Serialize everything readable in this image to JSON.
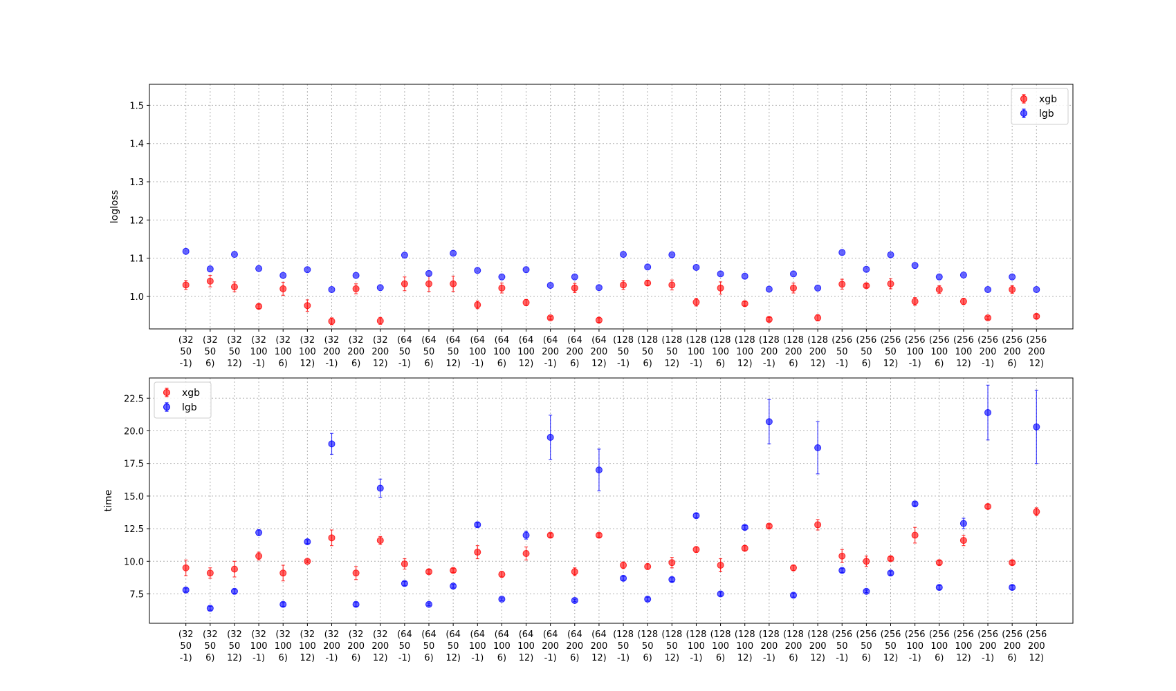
{
  "chart_data": [
    {
      "type": "scatter",
      "title": "",
      "xlabel": "",
      "ylabel": "logloss",
      "ylim": [
        0.915,
        1.555
      ],
      "yticks": [
        "1.0",
        "1.1",
        "1.2",
        "1.3",
        "1.4",
        "1.5"
      ],
      "grid": true,
      "legend_position": "top-right",
      "categories": [
        [
          "(32",
          "50",
          "-1)"
        ],
        [
          "(32",
          "50",
          "6)"
        ],
        [
          "(32",
          "50",
          "12)"
        ],
        [
          "(32",
          "100",
          "-1)"
        ],
        [
          "(32",
          "100",
          "6)"
        ],
        [
          "(32",
          "100",
          "12)"
        ],
        [
          "(32",
          "200",
          "-1)"
        ],
        [
          "(32",
          "200",
          "6)"
        ],
        [
          "(32",
          "200",
          "12)"
        ],
        [
          "(64",
          "50",
          "-1)"
        ],
        [
          "(64",
          "50",
          "6)"
        ],
        [
          "(64",
          "50",
          "12)"
        ],
        [
          "(64",
          "100",
          "-1)"
        ],
        [
          "(64",
          "100",
          "6)"
        ],
        [
          "(64",
          "100",
          "12)"
        ],
        [
          "(64",
          "200",
          "-1)"
        ],
        [
          "(64",
          "200",
          "6)"
        ],
        [
          "(64",
          "200",
          "12)"
        ],
        [
          "(128",
          "50",
          "-1)"
        ],
        [
          "(128",
          "50",
          "6)"
        ],
        [
          "(128",
          "50",
          "12)"
        ],
        [
          "(128",
          "100",
          "-1)"
        ],
        [
          "(128",
          "100",
          "6)"
        ],
        [
          "(128",
          "100",
          "12)"
        ],
        [
          "(128",
          "200",
          "-1)"
        ],
        [
          "(128",
          "200",
          "6)"
        ],
        [
          "(128",
          "200",
          "12)"
        ],
        [
          "(256",
          "50",
          "-1)"
        ],
        [
          "(256",
          "50",
          "6)"
        ],
        [
          "(256",
          "50",
          "12)"
        ],
        [
          "(256",
          "100",
          "-1)"
        ],
        [
          "(256",
          "100",
          "6)"
        ],
        [
          "(256",
          "100",
          "12)"
        ],
        [
          "(256",
          "200",
          "-1)"
        ],
        [
          "(256",
          "200",
          "6)"
        ],
        [
          "(256",
          "200",
          "12)"
        ]
      ],
      "series": [
        {
          "name": "xgb",
          "color": "#ff0000",
          "values": [
            1.03,
            1.04,
            1.025,
            0.974,
            1.02,
            0.976,
            0.935,
            1.02,
            0.936,
            1.033,
            1.033,
            1.033,
            0.978,
            1.022,
            0.984,
            0.944,
            1.022,
            0.938,
            1.03,
            1.035,
            1.03,
            0.985,
            1.022,
            0.981,
            0.94,
            1.022,
            0.944,
            1.032,
            1.028,
            1.033,
            0.987,
            1.018,
            0.987,
            0.944,
            1.018,
            0.948
          ],
          "errors": [
            0.012,
            0.015,
            0.013,
            0.006,
            0.017,
            0.015,
            0.009,
            0.013,
            0.009,
            0.018,
            0.02,
            0.02,
            0.01,
            0.013,
            0.008,
            0.004,
            0.012,
            0.006,
            0.012,
            0.006,
            0.013,
            0.01,
            0.016,
            0.006,
            0.005,
            0.013,
            0.008,
            0.013,
            0.005,
            0.013,
            0.01,
            0.01,
            0.008,
            0.004,
            0.01,
            0.005
          ]
        },
        {
          "name": "lgb",
          "color": "#0000ff",
          "values": [
            1.118,
            1.072,
            1.11,
            1.073,
            1.055,
            1.07,
            1.018,
            1.055,
            1.023,
            1.108,
            1.06,
            1.113,
            1.068,
            1.051,
            1.07,
            1.029,
            1.051,
            1.023,
            1.11,
            1.077,
            1.109,
            1.076,
            1.059,
            1.053,
            1.019,
            1.059,
            1.022,
            1.115,
            1.071,
            1.109,
            1.081,
            1.051,
            1.056,
            1.018,
            1.051,
            1.018
          ]
        }
      ]
    },
    {
      "type": "scatter",
      "title": "",
      "xlabel": "",
      "ylabel": "time",
      "ylim": [
        5.25,
        24.05
      ],
      "yticks": [
        "7.5",
        "10.0",
        "12.5",
        "15.0",
        "17.5",
        "20.0",
        "22.5"
      ],
      "grid": true,
      "legend_position": "top-left",
      "series": [
        {
          "name": "xgb",
          "color": "#ff0000",
          "values": [
            9.5,
            9.1,
            9.4,
            10.4,
            9.1,
            10.0,
            11.8,
            9.1,
            11.6,
            9.8,
            9.2,
            9.3,
            10.7,
            9.0,
            10.6,
            12.0,
            9.2,
            12.0,
            9.7,
            9.6,
            9.9,
            10.9,
            9.7,
            11.0,
            12.7,
            9.5,
            12.8,
            10.4,
            10.0,
            10.2,
            12.0,
            9.9,
            11.6,
            14.2,
            9.9,
            13.8
          ],
          "errors": [
            0.6,
            0.4,
            0.6,
            0.3,
            0.6,
            0.1,
            0.6,
            0.5,
            0.3,
            0.4,
            0.15,
            0.15,
            0.5,
            0.2,
            0.5,
            0.15,
            0.3,
            0.15,
            0.25,
            0.2,
            0.4,
            0.2,
            0.5,
            0.2,
            0.15,
            0.2,
            0.4,
            0.5,
            0.4,
            0.15,
            0.6,
            0.15,
            0.4,
            0.15,
            0.15,
            0.3
          ]
        },
        {
          "name": "lgb",
          "color": "#0000ff",
          "values": [
            7.8,
            6.4,
            7.7,
            12.2,
            6.7,
            11.5,
            19.0,
            6.7,
            15.6,
            8.3,
            6.7,
            8.1,
            12.8,
            7.1,
            12.0,
            19.5,
            7.0,
            17.0,
            8.7,
            7.1,
            8.6,
            13.5,
            7.5,
            12.6,
            20.7,
            7.4,
            18.7,
            9.3,
            7.7,
            9.1,
            14.4,
            8.0,
            12.9,
            21.4,
            8.0,
            20.3
          ],
          "errors": [
            0.15,
            0.15,
            0.15,
            0.2,
            0.15,
            0.15,
            0.8,
            0.15,
            0.7,
            0.15,
            0.1,
            0.15,
            0.15,
            0.1,
            0.3,
            1.7,
            0.1,
            1.6,
            0.15,
            0.15,
            0.15,
            0.15,
            0.15,
            0.15,
            1.7,
            0.15,
            2.0,
            0.15,
            0.1,
            0.15,
            0.15,
            0.15,
            0.4,
            2.1,
            0.15,
            2.8
          ]
        }
      ]
    }
  ]
}
